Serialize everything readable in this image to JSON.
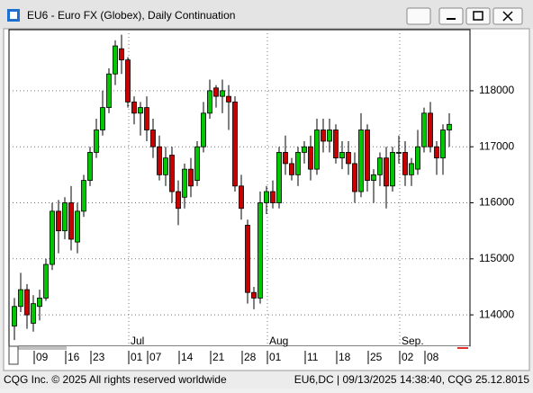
{
  "window": {
    "title": "EU6 - Euro FX (Globex), Daily Continuation",
    "footer_left": "CQG Inc. © 2025 All rights reserved worldwide",
    "footer_right": "EU6,DC | 09/13/2025 14:38:40, CQG 25.12.8015"
  },
  "chart_data": {
    "type": "candlestick",
    "categories": [
      null,
      null,
      null,
      null,
      "09",
      null,
      null,
      null,
      null,
      "16",
      null,
      null,
      null,
      "23",
      null,
      null,
      null,
      null,
      null,
      "01",
      null,
      null,
      "07",
      null,
      null,
      null,
      null,
      "14",
      null,
      null,
      null,
      null,
      "21",
      null,
      null,
      null,
      null,
      "28",
      null,
      null,
      null,
      "01",
      null,
      null,
      null,
      null,
      null,
      "11",
      null,
      null,
      null,
      null,
      "18",
      null,
      null,
      null,
      null,
      "25",
      null,
      null,
      null,
      null,
      "02",
      null,
      null,
      null,
      "08",
      null,
      null,
      null
    ],
    "months": [
      null,
      null,
      null,
      null,
      null,
      null,
      null,
      null,
      null,
      null,
      null,
      null,
      null,
      null,
      null,
      null,
      null,
      null,
      null,
      "Jul",
      null,
      null,
      null,
      null,
      null,
      null,
      null,
      null,
      null,
      null,
      null,
      null,
      null,
      null,
      null,
      null,
      null,
      null,
      null,
      null,
      null,
      "Aug",
      null,
      null,
      null,
      null,
      null,
      null,
      null,
      null,
      null,
      null,
      null,
      null,
      null,
      null,
      null,
      null,
      null,
      null,
      null,
      null,
      "Sep.",
      null,
      null,
      null,
      null,
      null,
      null,
      null
    ],
    "open": [
      113800,
      114150,
      114450,
      113850,
      114150,
      114300,
      114900,
      115850,
      115500,
      116000,
      115300,
      115850,
      116400,
      116900,
      117300,
      117700,
      118300,
      118750,
      118550,
      117800,
      117600,
      117700,
      117300,
      117000,
      116500,
      116850,
      116200,
      116100,
      116600,
      116400,
      117000,
      117600,
      118050,
      117900,
      117900,
      117800,
      116300,
      115600,
      114400,
      114300,
      116000,
      116200,
      116000,
      116900,
      116700,
      116500,
      116900,
      117000,
      116600,
      117300,
      117100,
      117300,
      116800,
      116900,
      116700,
      116200,
      117300,
      116400,
      116500,
      116800,
      116300,
      116900,
      116900,
      116500,
      116600,
      117000,
      117600,
      117000,
      116800,
      117300
    ],
    "high": [
      114300,
      114750,
      114550,
      114350,
      114450,
      115000,
      116000,
      116050,
      116100,
      116300,
      116000,
      116500,
      117000,
      117500,
      118000,
      118400,
      118900,
      119000,
      118600,
      117900,
      117800,
      117900,
      117500,
      117200,
      117000,
      117000,
      116400,
      116700,
      116800,
      117100,
      117800,
      118200,
      118100,
      118200,
      118100,
      117900,
      116500,
      115700,
      114500,
      116200,
      116300,
      116400,
      117000,
      117200,
      116800,
      117000,
      117100,
      117200,
      117500,
      117500,
      117500,
      117400,
      117100,
      117100,
      116900,
      117600,
      117400,
      116600,
      116900,
      117000,
      117000,
      117200,
      117100,
      116800,
      117300,
      117700,
      117800,
      117100,
      117400,
      117600
    ],
    "low": [
      113550,
      114050,
      113750,
      113700,
      113900,
      114250,
      114800,
      115100,
      115350,
      115150,
      115100,
      115750,
      116300,
      116800,
      117200,
      117600,
      118100,
      118300,
      117700,
      117400,
      117200,
      117100,
      116800,
      116400,
      116300,
      116000,
      115600,
      115900,
      116100,
      116300,
      116900,
      117500,
      117700,
      117600,
      117300,
      116200,
      115700,
      114200,
      114100,
      114200,
      115800,
      115900,
      115900,
      116500,
      116400,
      116300,
      116700,
      116400,
      116500,
      116900,
      116900,
      116700,
      116600,
      116500,
      116000,
      116100,
      116200,
      116000,
      116300,
      115900,
      116200,
      116700,
      116300,
      116300,
      116500,
      116900,
      116900,
      116500,
      116500,
      117000
    ],
    "close": [
      114150,
      114450,
      114000,
      114200,
      114300,
      114900,
      115850,
      115500,
      116000,
      115350,
      115850,
      116400,
      116900,
      117300,
      117700,
      118300,
      118800,
      118550,
      117800,
      117600,
      117700,
      117300,
      117000,
      116500,
      116800,
      116200,
      115900,
      116600,
      116300,
      117000,
      117600,
      118000,
      117900,
      118000,
      117800,
      116300,
      115900,
      114400,
      114300,
      116000,
      116200,
      116000,
      116900,
      116700,
      116500,
      116900,
      117000,
      116600,
      117300,
      117100,
      117300,
      116800,
      116900,
      116700,
      116200,
      117300,
      116400,
      116500,
      116800,
      116300,
      116900,
      116900,
      116500,
      116700,
      117000,
      117600,
      117000,
      116800,
      117300,
      117400
    ],
    "up_color": "#00c800",
    "down_color": "#c80000",
    "ylim": [
      113440,
      119090
    ],
    "yticks": [
      114000,
      115000,
      116000,
      117000,
      118000
    ],
    "grid": true
  }
}
